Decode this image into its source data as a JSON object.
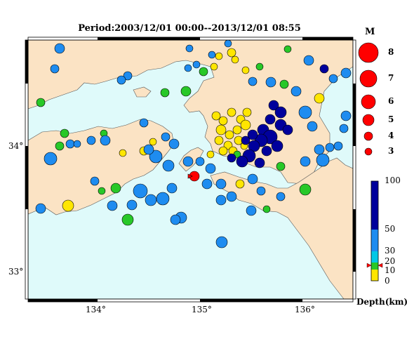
{
  "title": "Period:2003/12/01 00:00--2013/12/01 08:55",
  "x_ticks": [
    "134°",
    "135°",
    "136°"
  ],
  "y_ticks": [
    "34°",
    "33°"
  ],
  "magnitude_legend": {
    "title": "M",
    "labels": [
      "8",
      "7",
      "6",
      "5",
      "4",
      "3"
    ]
  },
  "depth_legend": {
    "unit": "Depth(km)",
    "labels": [
      "100",
      "50",
      "30",
      "20",
      "10",
      "0"
    ],
    "colors": {
      "deep": "#00009c",
      "mid": "#1e8cf0",
      "cyan": "#00c8e6",
      "green": "#28c828",
      "yellow": "#ffe600",
      "red": "#ff0000"
    }
  },
  "colors": {
    "land": "#fbe3c4",
    "sea": "#dffafa",
    "frame": "#000000"
  }
}
